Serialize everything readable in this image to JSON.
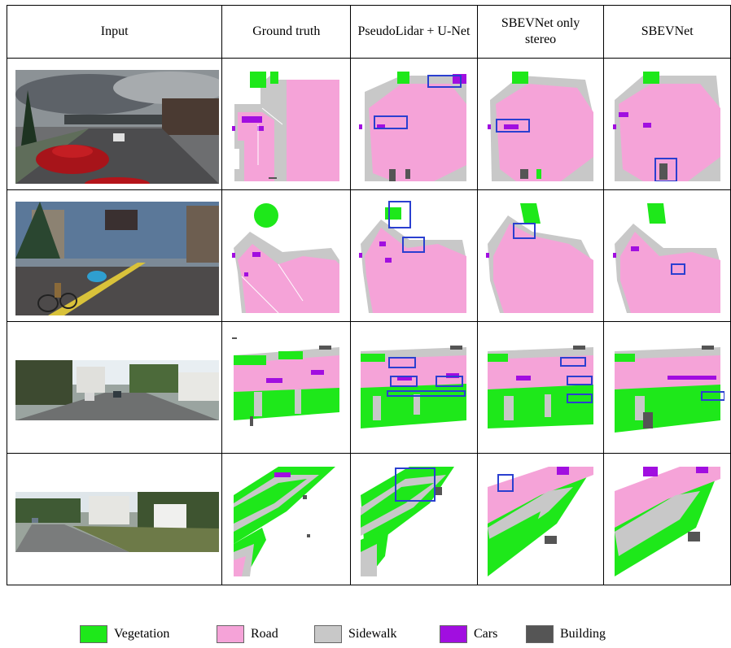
{
  "headers": [
    "Input",
    "Ground truth",
    "PseudoLidar + U-Net",
    "SBEVNet only stereo",
    "SBEVNet"
  ],
  "legend": [
    {
      "label": "Vegetation",
      "color": "#1ee81a"
    },
    {
      "label": "Road",
      "color": "#f5a3d8"
    },
    {
      "label": "Sidewalk",
      "color": "#c8c8c8"
    },
    {
      "label": "Cars",
      "color": "#a10ee0"
    },
    {
      "label": "Building",
      "color": "#555555"
    }
  ],
  "colors": {
    "vegetation": "#1ee81a",
    "road": "#f5a3d8",
    "sidewalk": "#c8c8c8",
    "cars": "#a10ee0",
    "building": "#555555",
    "box": "#2a3fd0"
  },
  "rows": [
    {
      "input_icon": "synthetic-city-street-photo"
    },
    {
      "input_icon": "synthetic-city-intersection-photo"
    },
    {
      "input_icon": "kitti-residential-street-photo"
    },
    {
      "input_icon": "kitti-residential-road-photo"
    }
  ]
}
